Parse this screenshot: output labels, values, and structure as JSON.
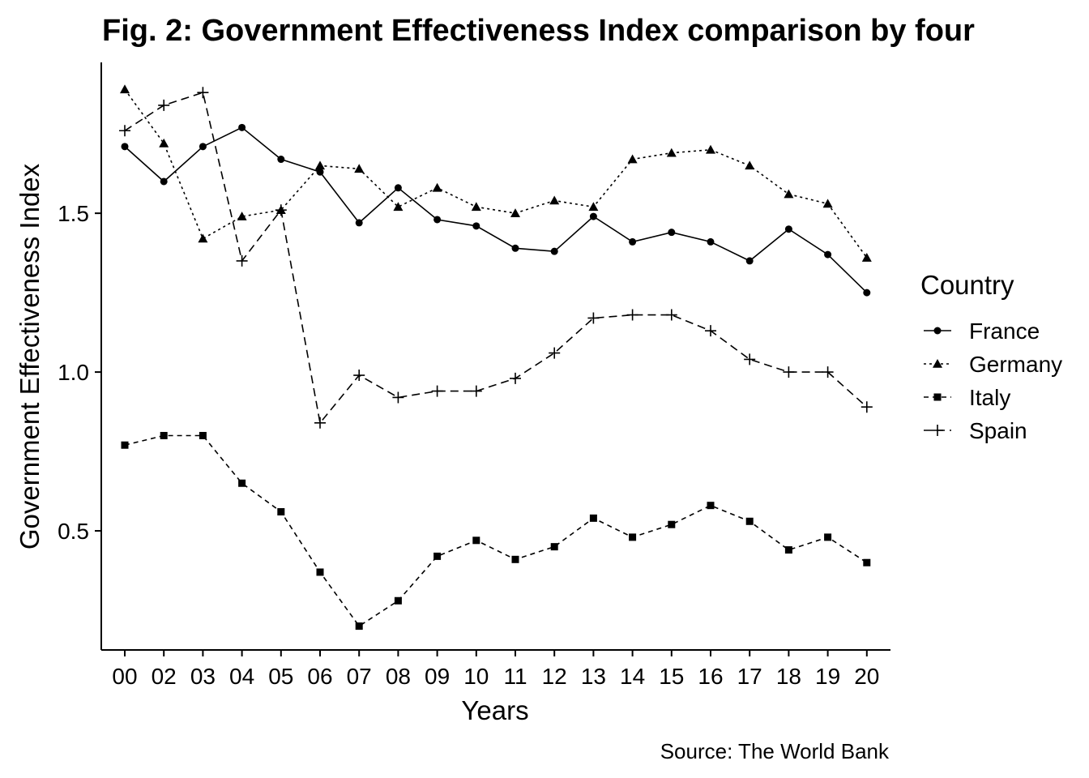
{
  "chart_data": {
    "type": "line",
    "title": "Fig. 2: Government Effectiveness Index comparison by four",
    "xlabel": "Years",
    "ylabel": "Government Effectiveness Index",
    "caption": "Source: The World Bank",
    "legend_title": "Country",
    "legend_position": "right",
    "grid": false,
    "ylim": [
      0.125,
      1.975
    ],
    "yticks": [
      "0.5",
      "1.0",
      "1.5"
    ],
    "categories": [
      "00",
      "02",
      "03",
      "04",
      "05",
      "06",
      "07",
      "08",
      "09",
      "10",
      "11",
      "12",
      "13",
      "14",
      "15",
      "16",
      "17",
      "18",
      "19",
      "20"
    ],
    "series": [
      {
        "name": "France",
        "marker": "circle",
        "dash": "solid",
        "color": "#000000",
        "values": [
          1.71,
          1.6,
          1.71,
          1.77,
          1.67,
          1.63,
          1.47,
          1.58,
          1.48,
          1.46,
          1.39,
          1.38,
          1.49,
          1.41,
          1.44,
          1.41,
          1.35,
          1.45,
          1.37,
          1.25
        ]
      },
      {
        "name": "Germany",
        "marker": "triangle",
        "dash": "dotted",
        "color": "#000000",
        "values": [
          1.89,
          1.72,
          1.42,
          1.49,
          1.51,
          1.65,
          1.64,
          1.52,
          1.58,
          1.52,
          1.5,
          1.54,
          1.52,
          1.67,
          1.69,
          1.7,
          1.65,
          1.56,
          1.53,
          1.36
        ]
      },
      {
        "name": "Italy",
        "marker": "square",
        "dash": "dashed",
        "color": "#000000",
        "values": [
          0.77,
          0.8,
          0.8,
          0.65,
          0.56,
          0.37,
          0.2,
          0.28,
          0.42,
          0.47,
          0.41,
          0.45,
          0.54,
          0.48,
          0.52,
          0.58,
          0.53,
          0.44,
          0.48,
          0.4
        ]
      },
      {
        "name": "Spain",
        "marker": "plus",
        "dash": "longdash",
        "color": "#000000",
        "values": [
          1.76,
          1.84,
          1.88,
          1.35,
          1.51,
          0.84,
          0.99,
          0.92,
          0.94,
          0.94,
          0.98,
          1.06,
          1.17,
          1.18,
          1.18,
          1.13,
          1.04,
          1.0,
          1.0,
          0.89
        ]
      }
    ]
  }
}
